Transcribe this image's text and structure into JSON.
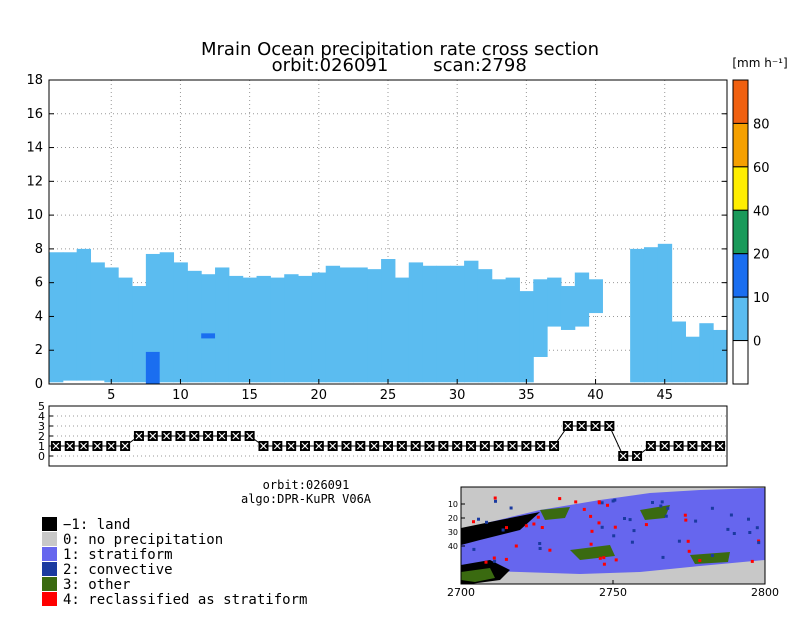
{
  "title_line1": "Mrain Ocean precipitation rate cross section",
  "title_line2_orbit": "orbit:026091",
  "title_line2_scan": "scan:2798",
  "units_label": "[mm h⁻¹]",
  "info_orbit": "orbit:026091",
  "info_algo": "algo:DPR-KuPR V06A",
  "colors": {
    "rain_light": "#5bbcf0",
    "rain_mid": "#1a6ef0",
    "land_marker": "#000000"
  },
  "chart_data": [
    {
      "type": "heatmap",
      "title": "Mrain Ocean precipitation rate cross section",
      "xlim": [
        1,
        49
      ],
      "ylim": [
        0,
        18
      ],
      "x_ticks": [
        5,
        10,
        15,
        20,
        25,
        30,
        35,
        40,
        45
      ],
      "y_ticks": [
        0,
        2,
        4,
        6,
        8,
        10,
        12,
        14,
        16,
        18
      ],
      "grid": true,
      "column_tops_km": [
        7.8,
        7.8,
        8.0,
        7.2,
        6.9,
        6.3,
        5.8,
        7.7,
        7.8,
        7.2,
        6.7,
        6.5,
        6.9,
        6.4,
        6.3,
        6.4,
        6.3,
        6.5,
        6.4,
        6.6,
        7.0,
        6.9,
        6.9,
        6.8,
        7.4,
        6.3,
        7.2,
        7.0,
        7.0,
        7.0,
        7.3,
        6.8,
        6.2,
        6.3,
        5.5,
        6.2,
        6.3,
        5.8,
        6.6,
        6.2,
        null,
        null,
        8.0,
        8.1,
        8.3,
        3.7,
        2.8,
        3.6,
        3.2
      ],
      "column_bottoms_km": [
        0.1,
        0.2,
        0.2,
        0.2,
        0.1,
        0.1,
        0.1,
        0.1,
        0.1,
        0.1,
        0.1,
        0.1,
        0.1,
        0.1,
        0.1,
        0.1,
        0.1,
        0.1,
        0.1,
        0.1,
        0.1,
        0.1,
        0.1,
        0.1,
        0.1,
        0.1,
        0.1,
        0.1,
        0.1,
        0.1,
        0.1,
        0.1,
        0.1,
        0.1,
        0.1,
        1.6,
        3.4,
        3.2,
        3.4,
        4.2,
        null,
        null,
        0.1,
        0.1,
        0.1,
        0.1,
        0.1,
        0.1,
        0.1
      ],
      "cell_10_20": [
        {
          "x": 8,
          "y0": 0.0,
          "y1": 1.9
        },
        {
          "x": 12,
          "y0": 2.7,
          "y1": 3.0
        }
      ],
      "colorbar": {
        "levels": [
          0,
          10,
          20,
          40,
          60,
          80
        ],
        "label": "[mm h⁻¹]",
        "colors": [
          "#ffffff",
          "#5bbcf0",
          "#1a6ef0",
          "#1a9a5a",
          "#ffee00",
          "#f5a000",
          "#f06010"
        ]
      }
    },
    {
      "type": "line",
      "xlim": [
        1,
        49
      ],
      "ylim": [
        -1,
        5
      ],
      "y_ticks": [
        0,
        1,
        2,
        3,
        4,
        5
      ],
      "values": [
        1,
        1,
        1,
        1,
        1,
        1,
        2,
        2,
        2,
        2,
        2,
        2,
        2,
        2,
        2,
        1,
        1,
        1,
        1,
        1,
        1,
        1,
        1,
        1,
        1,
        1,
        1,
        1,
        1,
        1,
        1,
        1,
        1,
        1,
        1,
        1,
        1,
        3,
        3,
        3,
        3,
        0,
        0,
        1,
        1,
        1,
        1,
        1,
        1
      ]
    },
    {
      "type": "heatmap",
      "xlim": [
        2700,
        2800
      ],
      "x_ticks": [
        2700,
        2750,
        2800
      ],
      "y_ticks": [
        10,
        20,
        30,
        40
      ],
      "legend": [
        {
          "color": "#000000",
          "label": "−1: land"
        },
        {
          "color": "#c8c8c8",
          "label": "0: no precipitation"
        },
        {
          "color": "#6666ee",
          "label": "1: stratiform"
        },
        {
          "color": "#1a3aa0",
          "label": "2: convective"
        },
        {
          "color": "#3a6a10",
          "label": "3: other"
        },
        {
          "color": "#ff0000",
          "label": "4: reclassified as stratiform"
        }
      ]
    }
  ]
}
